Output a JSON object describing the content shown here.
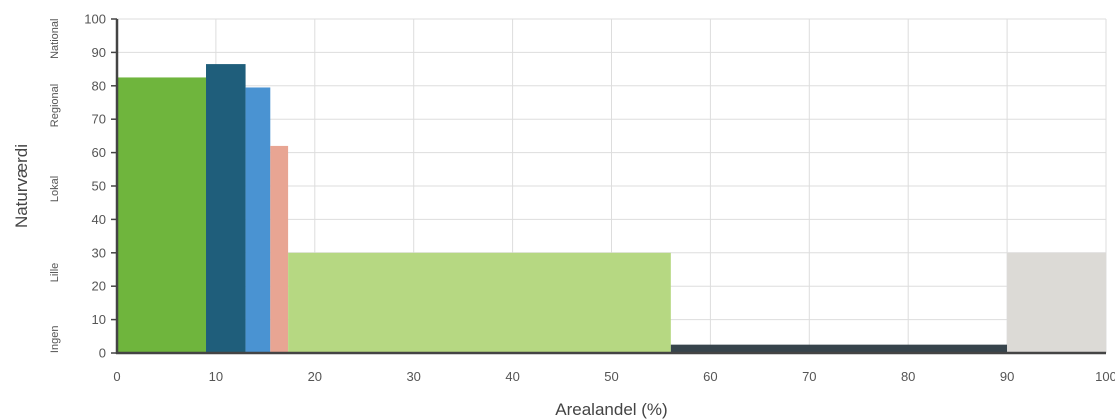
{
  "chart_data": {
    "type": "bar",
    "xlabel": "Arealandel (%)",
    "ylabel": "Naturværdi",
    "xlim": [
      0,
      100
    ],
    "ylim": [
      0,
      100
    ],
    "x_ticks": [
      "0",
      "10",
      "20",
      "30",
      "40",
      "50",
      "60",
      "70",
      "80",
      "90",
      "100"
    ],
    "y_ticks": [
      "0",
      "10",
      "20",
      "30",
      "40",
      "50",
      "60",
      "70",
      "80",
      "90",
      "100"
    ],
    "grid": true,
    "value_bands": [
      {
        "label": "Ingen",
        "from": 0,
        "to": 10
      },
      {
        "label": "Lille",
        "from": 10,
        "to": 40
      },
      {
        "label": "Lokal",
        "from": 40,
        "to": 60
      },
      {
        "label": "Regional",
        "from": 60,
        "to": 90
      },
      {
        "label": "National",
        "from": 90,
        "to": 100
      }
    ],
    "bars": [
      {
        "x0": 0,
        "x1": 9,
        "value": 82.5,
        "color": "#6fb53d"
      },
      {
        "x0": 9,
        "x1": 13,
        "value": 86.5,
        "color": "#1f5e7b"
      },
      {
        "x0": 13,
        "x1": 15.5,
        "value": 79.5,
        "color": "#4a93d2"
      },
      {
        "x0": 15.5,
        "x1": 17.3,
        "value": 62,
        "color": "#e8a593"
      },
      {
        "x0": 17.3,
        "x1": 56,
        "value": 30,
        "color": "#b6d882"
      },
      {
        "x0": 56,
        "x1": 90,
        "value": 2.5,
        "color": "#37444c"
      },
      {
        "x0": 90,
        "x1": 100,
        "value": 30,
        "color": "#dcdad6"
      }
    ]
  }
}
